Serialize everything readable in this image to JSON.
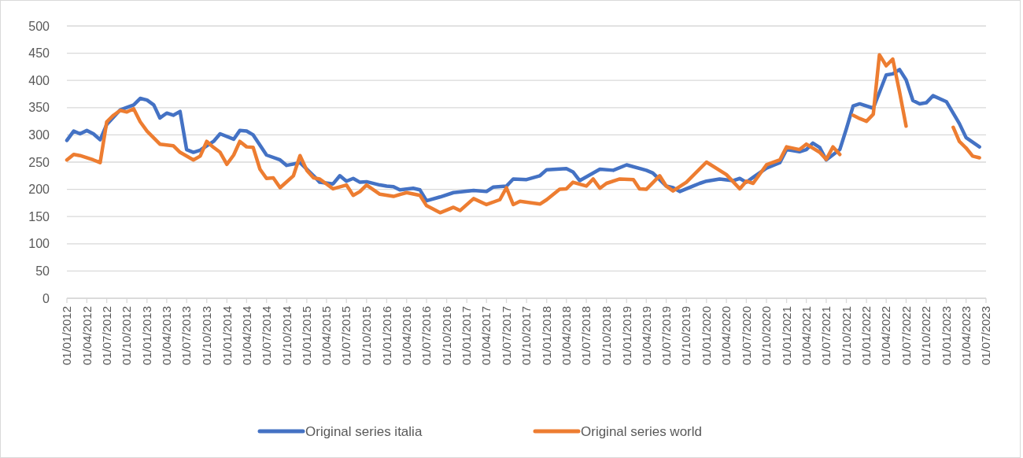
{
  "chart_data": {
    "type": "line",
    "xlim": [
      "2012-01-01",
      "2023-07-01"
    ],
    "ylim": [
      0,
      500
    ],
    "yticks": [
      0,
      50,
      100,
      150,
      200,
      250,
      300,
      350,
      400,
      450,
      500
    ],
    "grid": "y",
    "legend": "bottom",
    "line_style": "solid",
    "marker": "none",
    "xticks": [
      {
        "value": "2012-01-01",
        "label": "01/01/2012"
      },
      {
        "value": "2012-04-01",
        "label": "01/04/2012"
      },
      {
        "value": "2012-07-01",
        "label": "01/07/2012"
      },
      {
        "value": "2012-10-01",
        "label": "01/10/2012"
      },
      {
        "value": "2013-01-01",
        "label": "01/01/2013"
      },
      {
        "value": "2013-04-01",
        "label": "01/04/2013"
      },
      {
        "value": "2013-07-01",
        "label": "01/07/2013"
      },
      {
        "value": "2013-10-01",
        "label": "01/10/2013"
      },
      {
        "value": "2014-01-01",
        "label": "01/01/2014"
      },
      {
        "value": "2014-04-01",
        "label": "01/04/2014"
      },
      {
        "value": "2014-07-01",
        "label": "01/07/2014"
      },
      {
        "value": "2014-10-01",
        "label": "01/10/2014"
      },
      {
        "value": "2015-01-01",
        "label": "01/01/2015"
      },
      {
        "value": "2015-04-01",
        "label": "01/04/2015"
      },
      {
        "value": "2015-07-01",
        "label": "01/07/2015"
      },
      {
        "value": "2015-10-01",
        "label": "01/10/2015"
      },
      {
        "value": "2016-01-01",
        "label": "01/01/2016"
      },
      {
        "value": "2016-04-01",
        "label": "01/04/2016"
      },
      {
        "value": "2016-07-01",
        "label": "01/07/2016"
      },
      {
        "value": "2016-10-01",
        "label": "01/10/2016"
      },
      {
        "value": "2017-01-01",
        "label": "01/01/2017"
      },
      {
        "value": "2017-04-01",
        "label": "01/04/2017"
      },
      {
        "value": "2017-07-01",
        "label": "01/07/2017"
      },
      {
        "value": "2017-10-01",
        "label": "01/10/2017"
      },
      {
        "value": "2018-01-01",
        "label": "01/01/2018"
      },
      {
        "value": "2018-04-01",
        "label": "01/04/2018"
      },
      {
        "value": "2018-07-01",
        "label": "01/07/2018"
      },
      {
        "value": "2018-10-01",
        "label": "01/10/2018"
      },
      {
        "value": "2019-01-01",
        "label": "01/01/2019"
      },
      {
        "value": "2019-04-01",
        "label": "01/04/2019"
      },
      {
        "value": "2019-07-01",
        "label": "01/07/2019"
      },
      {
        "value": "2019-10-01",
        "label": "01/10/2019"
      },
      {
        "value": "2020-01-01",
        "label": "01/01/2020"
      },
      {
        "value": "2020-04-01",
        "label": "01/04/2020"
      },
      {
        "value": "2020-07-01",
        "label": "01/07/2020"
      },
      {
        "value": "2020-10-01",
        "label": "01/10/2020"
      },
      {
        "value": "2021-01-01",
        "label": "01/01/2021"
      },
      {
        "value": "2021-04-01",
        "label": "01/04/2021"
      },
      {
        "value": "2021-07-01",
        "label": "01/07/2021"
      },
      {
        "value": "2021-10-01",
        "label": "01/10/2021"
      },
      {
        "value": "2022-01-01",
        "label": "01/01/2022"
      },
      {
        "value": "2022-04-01",
        "label": "01/04/2022"
      },
      {
        "value": "2022-07-01",
        "label": "01/07/2022"
      },
      {
        "value": "2022-10-01",
        "label": "01/10/2022"
      },
      {
        "value": "2023-01-01",
        "label": "01/01/2023"
      },
      {
        "value": "2023-04-01",
        "label": "01/04/2023"
      },
      {
        "value": "2023-07-01",
        "label": "01/07/2023"
      }
    ],
    "series": [
      {
        "name": "Original series italia",
        "color": "#4472c4",
        "x": [
          "2012-01",
          "2012-02",
          "2012-03",
          "2012-04",
          "2012-05",
          "2012-06",
          "2012-07",
          "2012-09",
          "2012-11",
          "2012-12",
          "2013-01",
          "2013-02",
          "2013-03",
          "2013-04",
          "2013-05",
          "2013-06",
          "2013-07",
          "2013-08",
          "2013-09",
          "2013-11",
          "2013-12",
          "2014-02",
          "2014-03",
          "2014-04",
          "2014-05",
          "2014-07",
          "2014-09",
          "2014-10",
          "2014-12",
          "2015-02",
          "2015-03",
          "2015-05",
          "2015-06",
          "2015-07",
          "2015-08",
          "2015-09",
          "2015-10",
          "2015-12",
          "2016-01",
          "2016-02",
          "2016-03",
          "2016-05",
          "2016-06",
          "2016-07",
          "2016-09",
          "2016-11",
          "2017-02",
          "2017-04",
          "2017-05",
          "2017-07",
          "2017-08",
          "2017-10",
          "2017-12",
          "2018-01",
          "2018-04",
          "2018-05",
          "2018-06",
          "2018-09",
          "2018-11",
          "2019-01",
          "2019-04",
          "2019-05",
          "2019-07",
          "2019-08",
          "2019-09",
          "2019-11",
          "2019-12",
          "2020-01",
          "2020-03",
          "2020-05",
          "2020-06",
          "2020-07",
          "2020-08",
          "2020-10",
          "2020-12",
          "2021-01",
          "2021-03",
          "2021-04",
          "2021-05",
          "2021-06",
          "2021-07",
          "2021-09",
          "2021-10",
          "2021-11",
          "2021-12",
          "2022-02",
          "2022-04",
          "2022-05",
          "2022-06",
          "2022-07",
          "2022-08",
          "2022-09",
          "2022-10",
          "2022-11",
          "2023-01",
          "2023-03",
          "2023-04",
          "2023-06"
        ],
        "values": [
          290,
          307,
          302,
          308,
          302,
          291,
          319,
          346,
          355,
          367,
          364,
          355,
          331,
          340,
          336,
          343,
          273,
          268,
          272,
          288,
          302,
          292,
          308,
          307,
          300,
          263,
          254,
          244,
          249,
          225,
          213,
          210,
          225,
          215,
          220,
          213,
          214,
          208,
          206,
          205,
          199,
          202,
          199,
          179,
          186,
          194,
          198,
          196,
          204,
          206,
          219,
          218,
          225,
          236,
          238,
          232,
          216,
          237,
          235,
          245,
          235,
          230,
          206,
          203,
          196,
          206,
          211,
          215,
          219,
          216,
          220,
          213,
          222,
          239,
          249,
          273,
          269,
          273,
          285,
          277,
          254,
          273,
          311,
          353,
          357,
          349,
          410,
          412,
          420,
          401,
          363,
          357,
          359,
          372,
          361,
          321,
          295,
          278
        ]
      },
      {
        "name": "Original series world",
        "color": "#ed7d31",
        "x": [
          "2012-01",
          "2012-02",
          "2012-03",
          "2012-05",
          "2012-06",
          "2012-07",
          "2012-08",
          "2012-09",
          "2012-10",
          "2012-11",
          "2012-12",
          "2013-01",
          "2013-03",
          "2013-05",
          "2013-06",
          "2013-08",
          "2013-09",
          "2013-10",
          "2013-11",
          "2013-12",
          "2014-01",
          "2014-02",
          "2014-03",
          "2014-04",
          "2014-05",
          "2014-06",
          "2014-07",
          "2014-08",
          "2014-09",
          "2014-11",
          "2014-12",
          "2015-01",
          "2015-02",
          "2015-03",
          "2015-05",
          "2015-07",
          "2015-08",
          "2015-09",
          "2015-10",
          "2015-12",
          "2016-02",
          "2016-04",
          "2016-06",
          "2016-07",
          "2016-09",
          "2016-11",
          "2016-12",
          "2017-02",
          "2017-04",
          "2017-06",
          "2017-07",
          "2017-08",
          "2017-09",
          "2017-12",
          "2018-01",
          "2018-03",
          "2018-04",
          "2018-05",
          "2018-07",
          "2018-08",
          "2018-09",
          "2018-10",
          "2018-12",
          "2019-02",
          "2019-03",
          "2019-04",
          "2019-06",
          "2019-07",
          "2019-08",
          "2019-10",
          "2020-01",
          "2020-04",
          "2020-06",
          "2020-07",
          "2020-08",
          "2020-10",
          "2020-12",
          "2021-01",
          "2021-03",
          "2021-04",
          "2021-06",
          "2021-07",
          "2021-08",
          "2021-09",
          "2021-10",
          "2021-11",
          "2021-12",
          "2022-01",
          "2022-02",
          "2022-03",
          "2022-04",
          "2022-05",
          "2022-06",
          "2022-07",
          "2022-08",
          "2023-02",
          "2023-03",
          "2023-04",
          "2023-05",
          "2023-06"
        ],
        "values": [
          254,
          264,
          262,
          254,
          249,
          324,
          336,
          345,
          342,
          348,
          324,
          307,
          283,
          280,
          268,
          254,
          261,
          288,
          277,
          268,
          246,
          263,
          288,
          278,
          277,
          237,
          220,
          221,
          203,
          225,
          262,
          235,
          221,
          219,
          201,
          208,
          189,
          196,
          208,
          191,
          187,
          194,
          189,
          170,
          157,
          167,
          161,
          183,
          172,
          181,
          203,
          172,
          178,
          173,
          181,
          200,
          201,
          213,
          206,
          219,
          202,
          211,
          219,
          218,
          201,
          200,
          225,
          206,
          197,
          213,
          250,
          227,
          201,
          215,
          211,
          245,
          254,
          278,
          273,
          283,
          268,
          255,
          278,
          264,
          null,
          336,
          330,
          325,
          338,
          447,
          427,
          439,
          379,
          316,
          null,
          314,
          288,
          276,
          261,
          258
        ]
      }
    ]
  }
}
